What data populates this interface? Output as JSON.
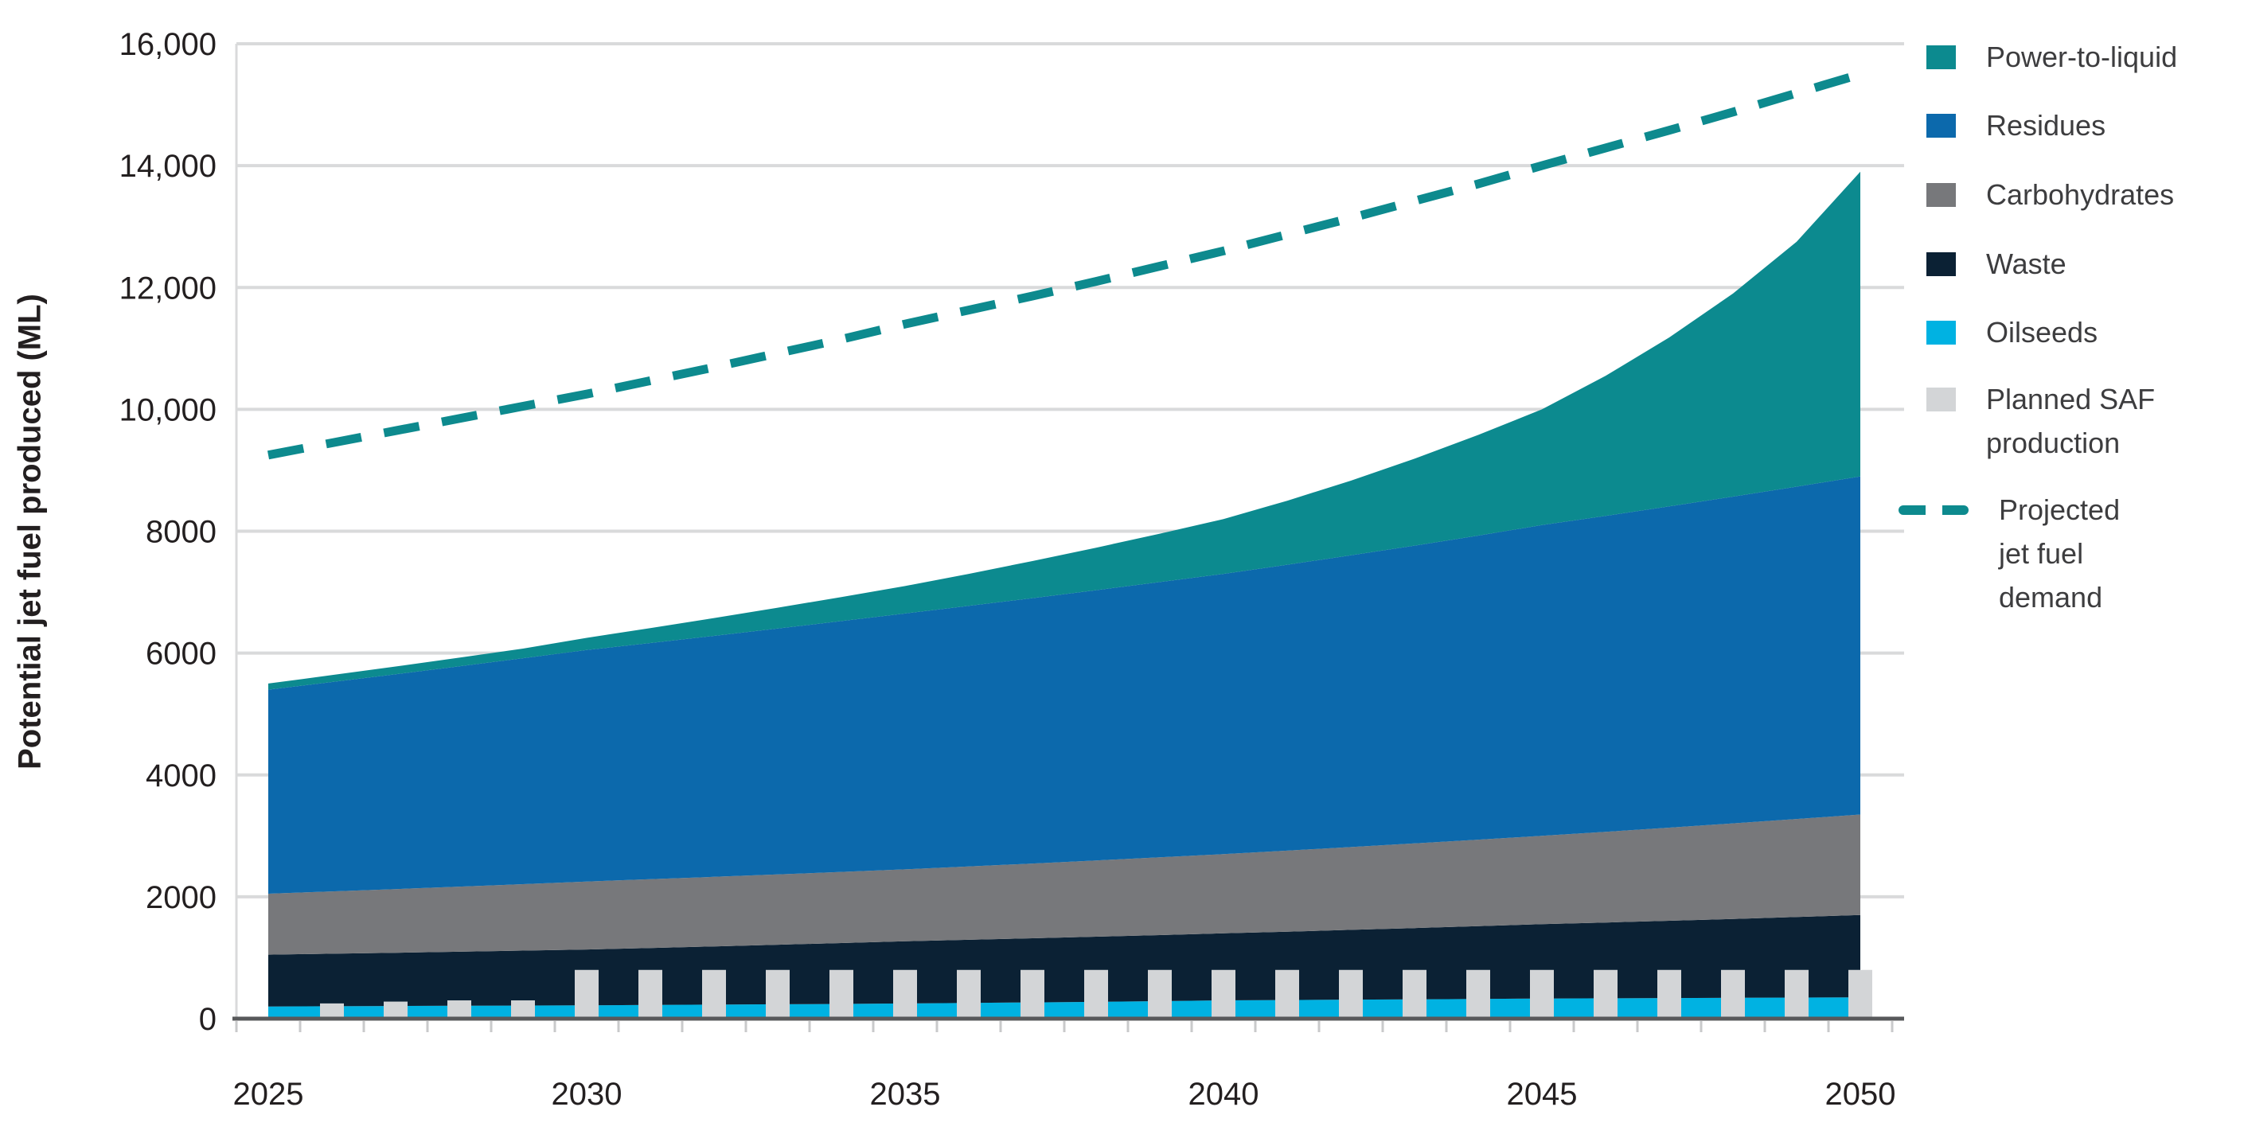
{
  "chart_data": {
    "type": "combo",
    "subtypes": [
      "stacked-area",
      "bar",
      "dashed-line"
    ],
    "title": "",
    "xlabel": "",
    "ylabel": "Potential jet fuel produced (ML)",
    "ylim": [
      0,
      16000
    ],
    "grid": "horizontal",
    "legend_position": "right",
    "years": [
      2025,
      2026,
      2027,
      2028,
      2029,
      2030,
      2031,
      2032,
      2033,
      2034,
      2035,
      2036,
      2037,
      2038,
      2039,
      2040,
      2041,
      2042,
      2043,
      2044,
      2045,
      2046,
      2047,
      2048,
      2049,
      2050
    ],
    "yticks": [
      {
        "value": 0,
        "label": "0"
      },
      {
        "value": 2000,
        "label": "2000"
      },
      {
        "value": 4000,
        "label": "4000"
      },
      {
        "value": 6000,
        "label": "6000"
      },
      {
        "value": 8000,
        "label": "8000"
      },
      {
        "value": 10000,
        "label": "10,000"
      },
      {
        "value": 12000,
        "label": "12,000"
      },
      {
        "value": 14000,
        "label": "14,000"
      },
      {
        "value": 16000,
        "label": "16,000"
      }
    ],
    "xticks": [
      {
        "label": "2025",
        "year": 2025
      },
      {
        "label": "2030",
        "year": 2030
      },
      {
        "label": "2035",
        "year": 2035
      },
      {
        "label": "2040",
        "year": 2040
      },
      {
        "label": "2045",
        "year": 2045
      },
      {
        "label": "2050",
        "year": 2050
      }
    ],
    "area_series": [
      {
        "name": "Oilseeds",
        "color": "#00b2e2",
        "values": [
          200,
          204,
          208,
          212,
          216,
          220,
          225,
          230,
          236,
          242,
          250,
          258,
          266,
          276,
          288,
          300,
          306,
          312,
          318,
          324,
          330,
          334,
          338,
          342,
          346,
          350
        ]
      },
      {
        "name": "Waste",
        "color": "#0b2134",
        "values": [
          850,
          862,
          874,
          887,
          901,
          915,
          935,
          956,
          977,
          999,
          1020,
          1036,
          1053,
          1069,
          1084,
          1100,
          1122,
          1145,
          1169,
          1194,
          1220,
          1244,
          1269,
          1295,
          1322,
          1350
        ]
      },
      {
        "name": "Carbohydrates",
        "color": "#77787b",
        "values": [
          1000,
          1022,
          1045,
          1068,
          1091,
          1115,
          1128,
          1141,
          1154,
          1167,
          1180,
          1203,
          1227,
          1251,
          1275,
          1300,
          1329,
          1359,
          1389,
          1419,
          1450,
          1488,
          1528,
          1568,
          1609,
          1650
        ]
      },
      {
        "name": "Residues",
        "color": "#0c69ac",
        "values": [
          3350,
          3437,
          3525,
          3615,
          3707,
          3800,
          3877,
          3955,
          4035,
          4117,
          4200,
          4278,
          4356,
          4436,
          4518,
          4600,
          4693,
          4788,
          4887,
          4991,
          5100,
          5186,
          5273,
          5363,
          5455,
          5550
        ]
      },
      {
        "name": "Power-to-liquid",
        "color": "#0c8a8f",
        "values": [
          100,
          113,
          128,
          143,
          158,
          200,
          245,
          293,
          343,
          395,
          450,
          525,
          608,
          698,
          795,
          900,
          1050,
          1226,
          1427,
          1652,
          1900,
          2298,
          2772,
          3332,
          4018,
          5000
        ]
      }
    ],
    "bar_series": {
      "name": "Planned SAF production",
      "color": "#d3d5d7",
      "values": [
        0,
        250,
        280,
        300,
        300,
        800,
        800,
        800,
        800,
        800,
        800,
        800,
        800,
        800,
        800,
        800,
        800,
        800,
        800,
        800,
        800,
        800,
        800,
        800,
        800,
        800
      ]
    },
    "line_series": {
      "name": "Projected jet fuel demand",
      "color": "#0d8a8e",
      "style": "dashed",
      "values": [
        9250,
        9450,
        9650,
        9850,
        10050,
        10250,
        10470,
        10690,
        10920,
        11150,
        11400,
        11630,
        11860,
        12100,
        12350,
        12600,
        12870,
        13140,
        13420,
        13700,
        14000,
        14290,
        14580,
        14880,
        15190,
        15500
      ]
    },
    "legend": [
      {
        "marker": "square",
        "color": "#0c8a8f",
        "label_lines": [
          "Power-to-liquid"
        ]
      },
      {
        "marker": "square",
        "color": "#0c69ac",
        "label_lines": [
          "Residues"
        ]
      },
      {
        "marker": "square",
        "color": "#77787b",
        "label_lines": [
          "Carbohydrates"
        ]
      },
      {
        "marker": "square",
        "color": "#0b2134",
        "label_lines": [
          "Waste"
        ]
      },
      {
        "marker": "square",
        "color": "#00b2e2",
        "label_lines": [
          "Oilseeds"
        ]
      },
      {
        "marker": "square",
        "color": "#d3d5d7",
        "label_lines": [
          "Planned SAF",
          "production"
        ]
      },
      {
        "marker": "dash",
        "color": "#0d8a8e",
        "label_lines": [
          "Projected",
          "jet fuel",
          "demand"
        ]
      }
    ],
    "colors": {
      "gridline": "#d9dadb",
      "axis_line": "#58595b",
      "tick": "#c9cacb",
      "tick_label": "#231f20",
      "legend_text": "#3d3d3f"
    }
  }
}
